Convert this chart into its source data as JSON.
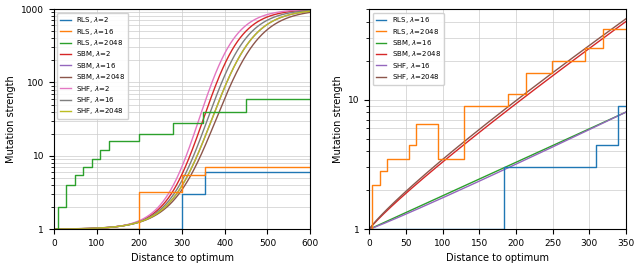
{
  "left": {
    "xlim": [
      0,
      600
    ],
    "ylim": [
      1.0,
      1000.0
    ],
    "xlabel": "Distance to optimum",
    "ylabel": "Mutation strength",
    "colors": {
      "RLS_2": "#1f77b4",
      "RLS_16": "#ff7f0e",
      "RLS_2048": "#2ca02c",
      "SBM_2": "#d62728",
      "SBM_16": "#9467bd",
      "SBM_2048": "#8c564b",
      "SHF_2": "#e377c2",
      "SHF_16": "#7f7f7f",
      "SHF_2048": "#bcbd22"
    },
    "rls2_x": [
      0,
      299,
      299,
      354,
      354,
      600
    ],
    "rls2_y": [
      1.0,
      1.0,
      3.0,
      3.0,
      6.0,
      6.0
    ],
    "rls16_x": [
      0,
      199,
      199,
      299,
      299,
      354,
      354,
      600
    ],
    "rls16_y": [
      1.0,
      1.0,
      3.2,
      3.2,
      5.5,
      5.5,
      7.0,
      7.0
    ],
    "rls2048_x": [
      0,
      9,
      9,
      29,
      29,
      49,
      49,
      69,
      69,
      89,
      89,
      109,
      109,
      129,
      129,
      199,
      199,
      279,
      279,
      349,
      349,
      449,
      449,
      600
    ],
    "rls2048_y": [
      1.0,
      1.0,
      2.0,
      2.0,
      4.0,
      4.0,
      5.5,
      5.5,
      7.0,
      7.0,
      9.0,
      9.0,
      12.0,
      12.0,
      16.0,
      16.0,
      20.0,
      20.0,
      28.0,
      28.0,
      40.0,
      40.0,
      60.0,
      60.0
    ]
  },
  "right": {
    "xlim": [
      0,
      350
    ],
    "ylim": [
      1.0,
      50.0
    ],
    "xlabel": "Distance to optimum",
    "ylabel": "Mutation strength",
    "colors": {
      "RLS_16": "#1f77b4",
      "RLS_2048": "#ff7f0e",
      "SBM_16": "#2ca02c",
      "SBM_2048": "#d62728",
      "SHF_16": "#9467bd",
      "SHF_2048": "#8c564b"
    },
    "rls16r_x": [
      0,
      184,
      184,
      309,
      309,
      339,
      339,
      350
    ],
    "rls16r_y": [
      1.0,
      1.0,
      3.0,
      3.0,
      4.5,
      4.5,
      9.0,
      9.0
    ],
    "rls2048r_x": [
      0,
      4,
      4,
      14,
      14,
      24,
      24,
      54,
      54,
      64,
      64,
      94,
      94,
      129,
      129,
      189,
      189,
      214,
      214,
      249,
      249,
      294,
      294,
      319,
      319,
      350
    ],
    "rls2048r_y": [
      1.0,
      1.0,
      2.2,
      2.2,
      2.8,
      2.8,
      3.5,
      3.5,
      4.5,
      4.5,
      6.5,
      6.5,
      3.5,
      3.5,
      9.0,
      9.0,
      11.0,
      11.0,
      16.0,
      16.0,
      20.0,
      20.0,
      25.0,
      25.0,
      35.0,
      35.0
    ]
  }
}
